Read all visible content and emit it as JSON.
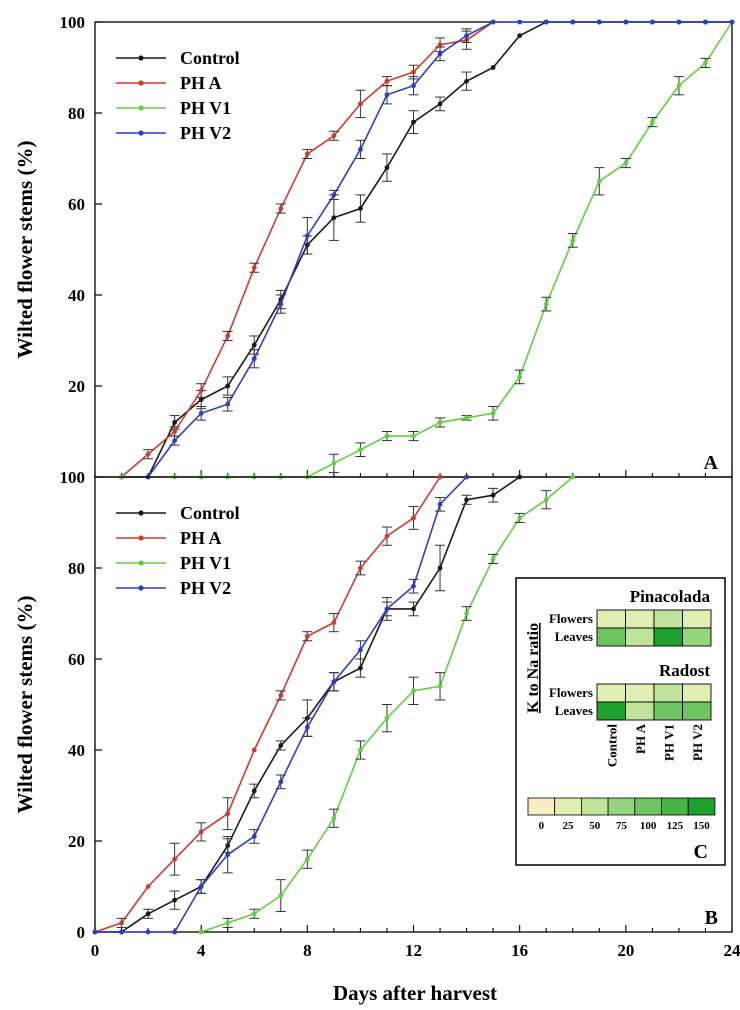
{
  "chart_data": [
    {
      "panel": "A",
      "type": "line",
      "xlabel": "",
      "ylabel": "Wilted flower stems (%)",
      "xlim": [
        0,
        24
      ],
      "ylim": [
        0,
        100
      ],
      "yticks": [
        20,
        40,
        60,
        80,
        100
      ],
      "legend": "top-left",
      "series": [
        {
          "name": "Control",
          "color": "#1a1a1a",
          "x": [
            1,
            2,
            3,
            4,
            5,
            6,
            7,
            8,
            9,
            10,
            11,
            12,
            13,
            14,
            15,
            16,
            17,
            18,
            19,
            20,
            21,
            22,
            23,
            24
          ],
          "y": [
            0,
            0,
            12,
            17,
            20,
            29,
            39,
            51,
            57,
            59,
            68,
            78,
            82,
            87,
            90,
            97,
            100,
            100,
            100,
            100,
            100,
            100,
            100,
            100
          ],
          "err": [
            0,
            0,
            1.5,
            2,
            2,
            2,
            2,
            2,
            5,
            3,
            3,
            2.5,
            1.5,
            2,
            0,
            0,
            0,
            0,
            0,
            0,
            0,
            0,
            0,
            0
          ]
        },
        {
          "name": "PH A",
          "color": "#d03a2e",
          "x": [
            1,
            2,
            3,
            4,
            5,
            6,
            7,
            8,
            9,
            10,
            11,
            12,
            13,
            14,
            15
          ],
          "y": [
            0,
            5,
            10,
            19,
            31,
            46,
            59,
            71,
            75,
            82,
            87,
            89,
            95,
            96,
            100
          ],
          "err": [
            0,
            1,
            1,
            1.5,
            1,
            1,
            1,
            1,
            1,
            3,
            1,
            1.5,
            1.5,
            2,
            0
          ]
        },
        {
          "name": "PH V1",
          "color": "#5ed13f",
          "x": [
            1,
            2,
            3,
            4,
            5,
            6,
            7,
            8,
            9,
            10,
            11,
            12,
            13,
            14,
            15,
            16,
            17,
            18,
            19,
            20,
            21,
            22,
            23,
            24
          ],
          "y": [
            0,
            0,
            0,
            0,
            0,
            0,
            0,
            0,
            3,
            6,
            9,
            9,
            12,
            13,
            14,
            22,
            38,
            52,
            65,
            69,
            78,
            86,
            91,
            100
          ],
          "err": [
            0,
            0,
            0,
            0,
            0,
            0,
            0,
            0,
            2,
            1.5,
            1,
            1,
            1,
            0.5,
            1.5,
            1.5,
            1.5,
            1.5,
            3,
            1,
            1,
            2,
            1,
            0
          ]
        },
        {
          "name": "PH V2",
          "color": "#2a3fc7",
          "x": [
            2,
            3,
            4,
            5,
            6,
            7,
            8,
            9,
            10,
            11,
            12,
            13,
            14,
            15,
            16,
            17,
            18,
            19,
            20,
            21,
            22,
            23,
            24
          ],
          "y": [
            0,
            8,
            14,
            16,
            26,
            38,
            53,
            62,
            72,
            84,
            86,
            93,
            97,
            100,
            100,
            100,
            100,
            100,
            100,
            100,
            100,
            100,
            100
          ],
          "err": [
            0,
            1,
            1.5,
            1.5,
            2,
            2,
            4,
            1,
            2,
            2,
            2,
            1.5,
            1.5,
            0,
            0,
            0,
            0,
            0,
            0,
            0,
            0,
            0,
            0
          ]
        }
      ]
    },
    {
      "panel": "B",
      "type": "line",
      "xlabel": "Days after harvest",
      "ylabel": "Wilted flower stems (%)",
      "xlim": [
        0,
        24
      ],
      "ylim": [
        0,
        100
      ],
      "xticks": [
        0,
        4,
        8,
        12,
        16,
        20,
        24
      ],
      "yticks": [
        0,
        20,
        40,
        60,
        80,
        100
      ],
      "legend": "top-left",
      "series": [
        {
          "name": "Control",
          "color": "#1a1a1a",
          "x": [
            0,
            1,
            2,
            3,
            4,
            5,
            6,
            7,
            8,
            9,
            10,
            11,
            12,
            13,
            14,
            15,
            16
          ],
          "y": [
            0,
            0,
            4,
            7,
            10,
            19,
            31,
            41,
            47,
            55,
            58,
            71,
            71,
            80,
            95,
            96,
            100
          ],
          "err": [
            0,
            0,
            1,
            2,
            1.5,
            1.5,
            1.5,
            1,
            4,
            2,
            2,
            1.5,
            1.5,
            5,
            1,
            1.5,
            0
          ]
        },
        {
          "name": "PH A",
          "color": "#d03a2e",
          "x": [
            0,
            1,
            2,
            3,
            4,
            5,
            6,
            7,
            8,
            9,
            10,
            11,
            12,
            13
          ],
          "y": [
            0,
            2,
            10,
            16,
            22,
            26,
            40,
            52,
            65,
            68,
            80,
            87,
            91,
            100
          ],
          "err": [
            0,
            1,
            0,
            3.5,
            2,
            3.5,
            0,
            1,
            1,
            2,
            1.5,
            2,
            2.5,
            0
          ]
        },
        {
          "name": "PH V1",
          "color": "#5ed13f",
          "x": [
            4,
            5,
            6,
            7,
            8,
            9,
            10,
            11,
            12,
            13,
            14,
            15,
            16,
            17,
            18
          ],
          "y": [
            0,
            2,
            4,
            8,
            16,
            25,
            40,
            47,
            53,
            54,
            70,
            82,
            91,
            95,
            100
          ],
          "err": [
            0,
            1,
            1,
            3.5,
            2,
            2,
            2,
            3,
            3,
            3,
            1.5,
            1,
            1,
            2,
            0
          ]
        },
        {
          "name": "PH V2",
          "color": "#2a3fc7",
          "x": [
            0,
            1,
            2,
            3,
            4,
            5,
            6,
            7,
            8,
            9,
            10,
            11,
            12,
            13,
            14
          ],
          "y": [
            0,
            0,
            0,
            0,
            10,
            17,
            21,
            33,
            45,
            55,
            62,
            71,
            76,
            94,
            100
          ],
          "err": [
            0,
            0,
            0,
            0,
            1.5,
            4,
            1.5,
            1.5,
            2,
            2,
            2,
            2.5,
            1.5,
            1.5,
            0
          ]
        }
      ]
    }
  ],
  "inset": {
    "panel": "C",
    "ylabel": "K to Na ratio",
    "blocks": [
      {
        "title": "Pinacolada",
        "rows": [
          {
            "label": "Flowers",
            "values": [
              20,
              30,
              60,
              25
            ]
          },
          {
            "label": "Leaves",
            "values": [
              110,
              45,
              150,
              80
            ]
          }
        ]
      },
      {
        "title": "Radost",
        "rows": [
          {
            "label": "Flowers",
            "values": [
              20,
              25,
              55,
              25
            ]
          },
          {
            "label": "Leaves",
            "values": [
              140,
              50,
              110,
              90
            ]
          }
        ]
      }
    ],
    "columns": [
      "Control",
      "PH A",
      "PH V1",
      "PH V2"
    ],
    "scale": {
      "ticks": [
        "0",
        "25",
        "50",
        "75",
        "100",
        "125",
        "150"
      ],
      "colors": [
        "#fbecc4",
        "#dfeeb2",
        "#bfe39a",
        "#96d47e",
        "#6fc462",
        "#48b347",
        "#1f9f2e"
      ]
    }
  }
}
